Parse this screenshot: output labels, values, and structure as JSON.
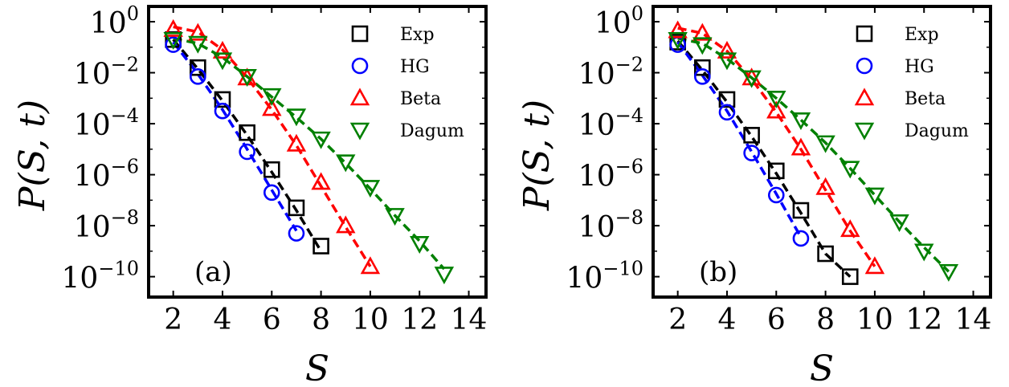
{
  "chart_data": [
    {
      "type": "scatter",
      "panel_label": "(a)",
      "xlabel": "S",
      "ylabel": "P(S, t)",
      "ylog": true,
      "xlim": [
        1,
        14.7
      ],
      "ylim_log10": [
        -10.8,
        0.6
      ],
      "xticks": [
        "2",
        "4",
        "6",
        "8",
        "10",
        "12",
        "14"
      ],
      "xtick_values": [
        2,
        4,
        6,
        8,
        10,
        12,
        14
      ],
      "yticks": [
        {
          "base": "10",
          "exp": "0",
          "log10": 0
        },
        {
          "base": "10",
          "exp": "−2",
          "log10": -2
        },
        {
          "base": "10",
          "exp": "−4",
          "log10": -4
        },
        {
          "base": "10",
          "exp": "−6",
          "log10": -6
        },
        {
          "base": "10",
          "exp": "−8",
          "log10": -8
        },
        {
          "base": "10",
          "exp": "−10",
          "log10": -10
        }
      ],
      "legend_position": "top-right",
      "grid": false,
      "series": [
        {
          "name": "Exp",
          "marker": "square",
          "color": "#000000",
          "x": [
            2,
            3,
            4,
            5,
            6,
            7,
            8
          ],
          "log10_y": [
            -0.7,
            -1.8,
            -3.05,
            -4.35,
            -5.8,
            -7.3,
            -8.8
          ],
          "fit_log10_y": [
            -0.7,
            -1.85,
            -3.1,
            -4.45,
            -5.9,
            -7.4,
            -9.0
          ]
        },
        {
          "name": "HG",
          "marker": "circle",
          "color": "#0000ff",
          "x": [
            2,
            3,
            4,
            5,
            6,
            7
          ],
          "log10_y": [
            -0.9,
            -2.15,
            -3.5,
            -5.1,
            -6.7,
            -8.3
          ],
          "fit_log10_y": [
            -0.8,
            -2.05,
            -3.45,
            -5.0,
            -6.6,
            -8.2
          ]
        },
        {
          "name": "Beta",
          "marker": "triangle-up",
          "color": "#ff0000",
          "x": [
            2,
            3,
            4,
            5,
            6,
            7,
            8,
            9,
            10
          ],
          "log10_y": [
            -0.3,
            -0.45,
            -1.15,
            -2.2,
            -3.4,
            -4.8,
            -6.3,
            -8.0,
            -9.6
          ],
          "fit_log10_y": [
            -0.2,
            -0.4,
            -1.1,
            -2.2,
            -3.45,
            -4.85,
            -6.45,
            -8.05,
            -9.6
          ]
        },
        {
          "name": "Dagum",
          "marker": "triangle-down",
          "color": "#008000",
          "x": [
            2,
            3,
            4,
            5,
            6,
            7,
            8,
            9,
            10,
            11,
            12,
            13
          ],
          "log10_y": [
            -0.7,
            -0.85,
            -1.5,
            -2.15,
            -2.9,
            -3.7,
            -4.6,
            -5.5,
            -6.5,
            -7.6,
            -8.7,
            -9.9
          ],
          "fit_log10_y": [
            -0.65,
            -0.85,
            -1.4,
            -2.15,
            -2.95,
            -3.75,
            -4.6,
            -5.55,
            -6.55,
            -7.6,
            -8.6,
            -9.7
          ]
        }
      ]
    },
    {
      "type": "scatter",
      "panel_label": "(b)",
      "xlabel": "S",
      "ylabel": "P(S, t)",
      "ylog": true,
      "xlim": [
        1,
        14.7
      ],
      "ylim_log10": [
        -10.8,
        0.6
      ],
      "xticks": [
        "2",
        "4",
        "6",
        "8",
        "10",
        "12",
        "14"
      ],
      "xtick_values": [
        2,
        4,
        6,
        8,
        10,
        12,
        14
      ],
      "yticks": [
        {
          "base": "10",
          "exp": "0",
          "log10": 0
        },
        {
          "base": "10",
          "exp": "−2",
          "log10": -2
        },
        {
          "base": "10",
          "exp": "−4",
          "log10": -4
        },
        {
          "base": "10",
          "exp": "−6",
          "log10": -6
        },
        {
          "base": "10",
          "exp": "−8",
          "log10": -8
        },
        {
          "base": "10",
          "exp": "−10",
          "log10": -10
        }
      ],
      "legend_position": "top-right",
      "grid": false,
      "series": [
        {
          "name": "Exp",
          "marker": "square",
          "color": "#000000",
          "x": [
            2,
            3,
            4,
            5,
            6,
            7,
            8,
            9
          ],
          "log10_y": [
            -0.8,
            -1.8,
            -3.05,
            -4.45,
            -5.85,
            -7.4,
            -9.1,
            -10.0
          ],
          "fit_log10_y": [
            -0.75,
            -1.9,
            -3.15,
            -4.5,
            -5.95,
            -7.5,
            -9.1,
            -10.0
          ]
        },
        {
          "name": "HG",
          "marker": "circle",
          "color": "#0000ff",
          "x": [
            2,
            3,
            4,
            5,
            6,
            7
          ],
          "log10_y": [
            -0.9,
            -2.15,
            -3.55,
            -5.15,
            -6.8,
            -8.5
          ],
          "fit_log10_y": [
            -0.8,
            -2.1,
            -3.5,
            -5.1,
            -6.75,
            -8.45
          ]
        },
        {
          "name": "Beta",
          "marker": "triangle-up",
          "color": "#ff0000",
          "x": [
            2,
            3,
            4,
            5,
            6,
            7,
            8,
            9,
            10
          ],
          "log10_y": [
            -0.35,
            -0.45,
            -1.15,
            -2.2,
            -3.5,
            -4.95,
            -6.5,
            -8.15,
            -9.6
          ],
          "fit_log10_y": [
            -0.25,
            -0.45,
            -1.15,
            -2.25,
            -3.55,
            -5.0,
            -6.6,
            -8.2,
            -9.6
          ]
        },
        {
          "name": "Dagum",
          "marker": "triangle-down",
          "color": "#008000",
          "x": [
            2,
            3,
            4,
            5,
            6,
            7,
            8,
            9,
            10,
            11,
            12,
            13
          ],
          "log10_y": [
            -0.7,
            -0.9,
            -1.5,
            -2.2,
            -3.0,
            -3.85,
            -4.75,
            -5.75,
            -6.8,
            -7.85,
            -9.0,
            -9.8
          ],
          "fit_log10_y": [
            -0.65,
            -0.85,
            -1.45,
            -2.2,
            -3.0,
            -3.85,
            -4.75,
            -5.75,
            -6.8,
            -7.85,
            -8.85,
            -9.8
          ]
        }
      ]
    }
  ]
}
